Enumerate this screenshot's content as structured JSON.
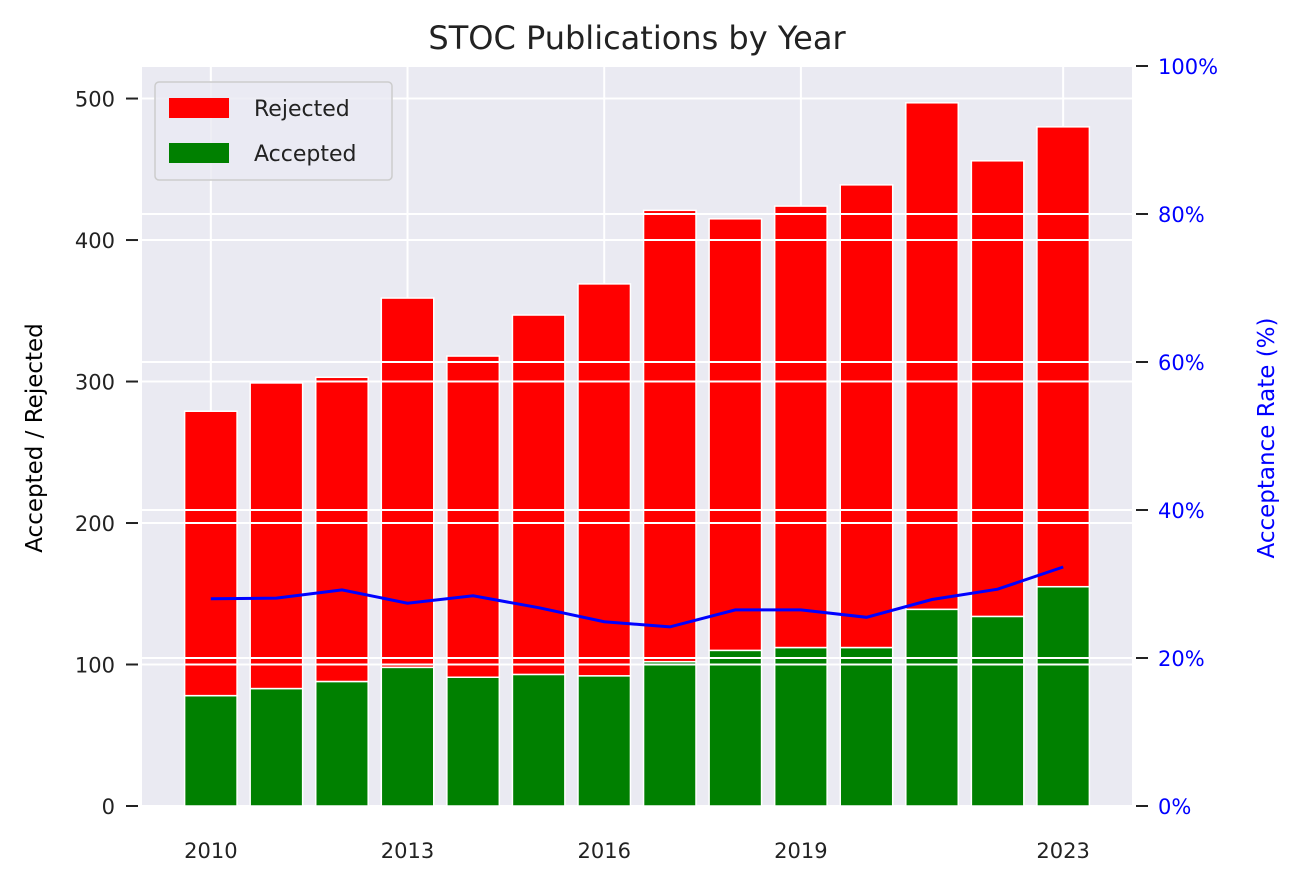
{
  "chart_data": {
    "type": "bar",
    "title": "STOC Publications by Year",
    "ylabel": "Accepted / Rejected",
    "y2label": "Acceptance Rate (%)",
    "ylim": [
      0,
      523
    ],
    "y2lim": [
      0,
      100
    ],
    "xlim": [
      2008.95,
      2024.05
    ],
    "x": [
      2010,
      2011,
      2012,
      2013,
      2014,
      2015,
      2016,
      2017,
      2018,
      2019,
      2020,
      2021,
      2022,
      2023
    ],
    "xticks": [
      2010,
      2013,
      2016,
      2019,
      2023
    ],
    "yticks": [
      0,
      100,
      200,
      300,
      400,
      500
    ],
    "y2ticks": [
      "0%",
      "20%",
      "40%",
      "60%",
      "80%",
      "100%"
    ],
    "y2tick_values": [
      0,
      20,
      40,
      60,
      80,
      100
    ],
    "stacked": true,
    "grid": true,
    "legend_position": "top-left",
    "series": [
      {
        "name": "Accepted",
        "color": "#008000",
        "values": [
          78,
          83,
          88,
          98,
          91,
          93,
          92,
          102,
          110,
          112,
          112,
          139,
          134,
          155
        ]
      },
      {
        "name": "Rejected",
        "color": "#ff0000",
        "values": [
          201,
          216,
          215,
          261,
          227,
          254,
          277,
          319,
          305,
          312,
          327,
          358,
          322,
          325
        ]
      }
    ],
    "legend_order": [
      "Rejected",
      "Accepted"
    ],
    "line": {
      "name": "Acceptance Rate",
      "color": "#0000ff",
      "axis": "right",
      "values": [
        28,
        28.1,
        29.2,
        27.4,
        28.4,
        26.8,
        24.9,
        24.2,
        26.5,
        26.5,
        25.5,
        27.9,
        29.3,
        32.3
      ]
    },
    "colors": {
      "background": "#eaeaf2",
      "grid": "#ffffff",
      "right_axis": "#0000ff"
    }
  }
}
